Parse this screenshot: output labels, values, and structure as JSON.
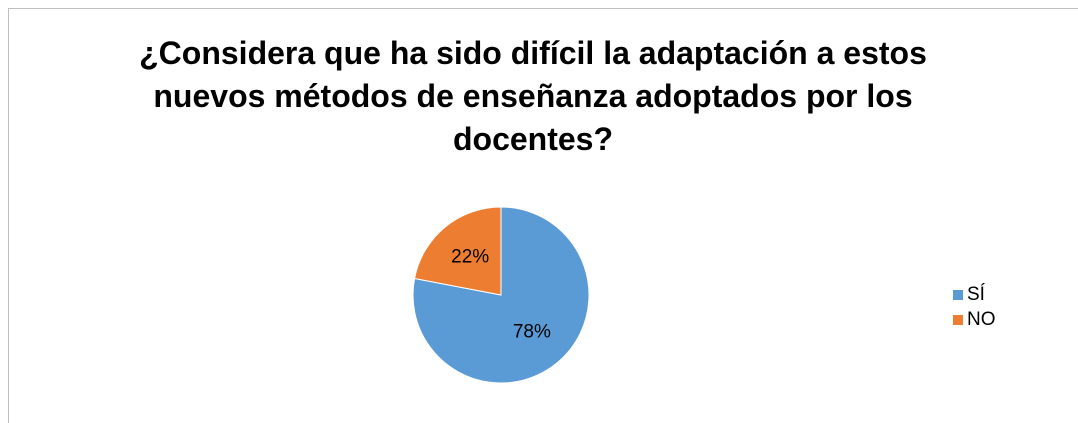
{
  "chart_data": {
    "type": "pie",
    "title": "¿Considera que ha sido difícil la adaptación a estos nuevos métodos de enseñanza adoptados por los docentes?",
    "categories": [
      "SÍ",
      "NO"
    ],
    "values": [
      78,
      22
    ],
    "value_labels": [
      "78%",
      "22%"
    ],
    "colors": [
      "#5b9bd5",
      "#ed7d31"
    ],
    "legend": "right"
  }
}
